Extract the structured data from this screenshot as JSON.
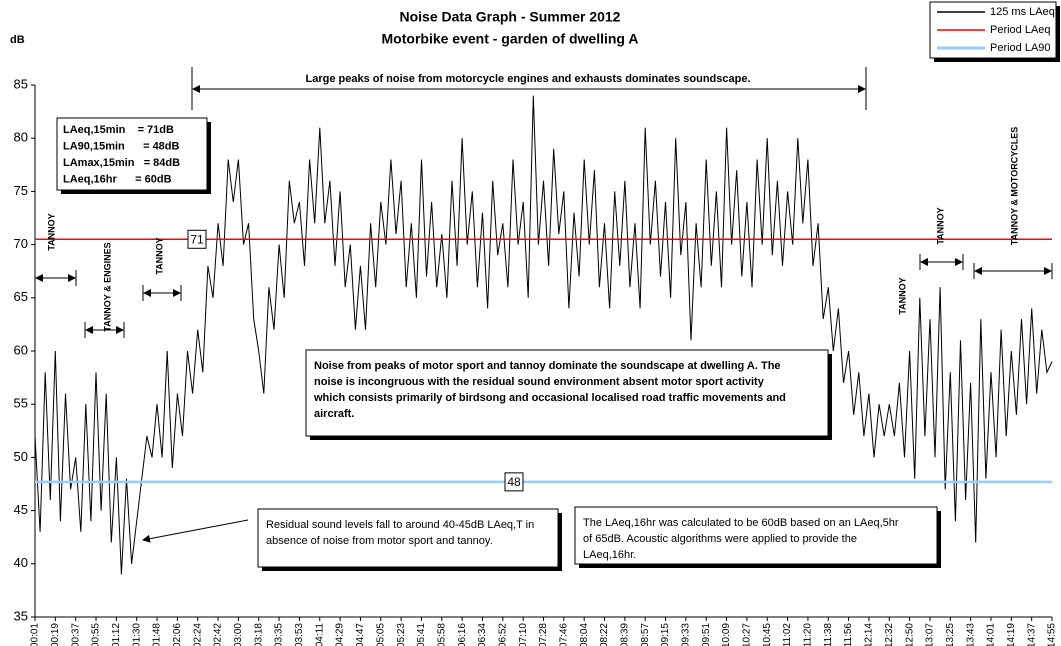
{
  "chart_data": {
    "type": "line",
    "title": "Noise Data Graph - Summer 2012",
    "subtitle": "Motorbike event - garden of dwelling A",
    "y_label": "dB",
    "ylim": [
      35,
      85
    ],
    "yticks": [
      35,
      40,
      45,
      50,
      55,
      60,
      65,
      70,
      75,
      80,
      85
    ],
    "categories": [
      "17:00:01",
      null,
      null,
      null,
      "17:00:19",
      null,
      null,
      null,
      "17:00:37",
      null,
      null,
      null,
      "17:00:55",
      null,
      null,
      null,
      "17:01:12",
      null,
      null,
      null,
      "17:01:30",
      null,
      null,
      null,
      "17:01:48",
      null,
      null,
      null,
      "17:02:06",
      null,
      null,
      null,
      "17:02:24",
      null,
      null,
      null,
      "17:02:42",
      null,
      null,
      null,
      "17:03:00",
      null,
      null,
      null,
      "17:03:18",
      null,
      null,
      null,
      "17:03:35",
      null,
      null,
      null,
      "17:03:53",
      null,
      null,
      null,
      "17:04:11",
      null,
      null,
      null,
      "17:04:29",
      null,
      null,
      null,
      "17:04:47",
      null,
      null,
      null,
      "17:05:05",
      null,
      null,
      null,
      "17:05:23",
      null,
      null,
      null,
      "17:05:41",
      null,
      null,
      null,
      "17:05:58",
      null,
      null,
      null,
      "17:06:16",
      null,
      null,
      null,
      "17:06:34",
      null,
      null,
      null,
      "17:06:52",
      null,
      null,
      null,
      "17:07:10",
      null,
      null,
      null,
      "17:07:28",
      null,
      null,
      null,
      "17:07:46",
      null,
      null,
      null,
      "17:08:04",
      null,
      null,
      null,
      "17:08:22",
      null,
      null,
      null,
      "17:08:39",
      null,
      null,
      null,
      "17:08:57",
      null,
      null,
      null,
      "17:09:15",
      null,
      null,
      null,
      "17:09:33",
      null,
      null,
      null,
      "17:09:51",
      null,
      null,
      null,
      "17:10:09",
      null,
      null,
      null,
      "17:10:27",
      null,
      null,
      null,
      "17:10:45",
      null,
      null,
      null,
      "17:11:02",
      null,
      null,
      null,
      "17:11:20",
      null,
      null,
      null,
      "17:11:38",
      null,
      null,
      null,
      "17:11:56",
      null,
      null,
      null,
      "17:12:14",
      null,
      null,
      null,
      "17:12:32",
      null,
      null,
      null,
      "17:12:50",
      null,
      null,
      null,
      "17:13:07",
      null,
      null,
      null,
      "17:13:25",
      null,
      null,
      null,
      "17:13:43",
      null,
      null,
      null,
      "17:14:01",
      null,
      null,
      null,
      "17:14:19",
      null,
      null,
      null,
      "17:14:37",
      null,
      null,
      null,
      "17:14:55"
    ],
    "series": [
      {
        "name": "125 ms LAeq",
        "color": "#000000",
        "values": [
          52,
          43,
          58,
          46,
          60,
          44,
          56,
          47,
          50,
          43,
          55,
          44,
          58,
          45,
          56,
          42,
          50,
          39,
          48,
          40,
          44,
          48,
          52,
          50,
          55,
          50,
          60,
          49,
          56,
          52,
          60,
          56,
          62,
          58,
          68,
          65,
          72,
          68,
          78,
          74,
          78,
          70,
          72,
          63,
          60,
          56,
          66,
          62,
          70,
          65,
          76,
          72,
          74,
          68,
          78,
          72,
          81,
          72,
          76,
          68,
          75,
          66,
          70,
          62,
          68,
          62,
          72,
          66,
          74,
          70,
          78,
          71,
          76,
          66,
          72,
          65,
          78,
          67,
          74,
          66,
          71,
          65,
          76,
          68,
          80,
          70,
          75,
          66,
          73,
          64,
          76,
          69,
          72,
          66,
          78,
          70,
          74,
          65,
          84,
          70,
          76,
          68,
          79,
          71,
          75,
          64,
          73,
          67,
          78,
          70,
          77,
          66,
          72,
          64,
          75,
          68,
          76,
          66,
          72,
          64,
          81,
          70,
          76,
          67,
          74,
          65,
          80,
          69,
          74,
          61,
          72,
          66,
          78,
          68,
          75,
          66,
          81,
          70,
          77,
          67,
          74,
          66,
          78,
          70,
          80,
          69,
          76,
          68,
          75,
          70,
          80,
          72,
          78,
          68,
          72,
          63,
          66,
          60,
          64,
          57,
          60,
          54,
          58,
          52,
          56,
          50,
          55,
          52,
          55,
          52,
          57,
          50,
          60,
          48,
          65,
          52,
          63,
          50,
          66,
          47,
          58,
          44,
          61,
          46,
          57,
          42,
          63,
          48,
          58,
          50,
          62,
          52,
          60,
          54,
          63,
          55,
          64,
          56,
          62,
          58,
          59
        ]
      },
      {
        "name": "Period LAeq",
        "color": "#ff0000",
        "value": 70.5,
        "label": "71"
      },
      {
        "name": "Period LA90",
        "color": "#99ccff",
        "value": 47.7,
        "label": "48"
      }
    ],
    "stats": [
      "LAeq,15min    = 71dB",
      "LA90,15min      = 48dB",
      "LAmax,15min   = 84dB",
      "LAeq,16hr      = 60dB"
    ],
    "annotations": [
      "Large peaks of noise from motorcycle engines and exhausts dominates soundscape.",
      "TANNOY",
      "TANNOY & ENGINES",
      "TANNOY",
      "TANNOY",
      "TANNOY",
      "TANNOY & MOTORCYCLES"
    ],
    "notes": [
      [
        "Noise from peaks of motor sport and tannoy dominate the soundscape at dwelling A. The",
        "noise is incongruous with the residual sound environment absent motor sport activity",
        "which consists primarily of birdsong and occasional localised road traffic movements and",
        "aircraft."
      ],
      [
        "Residual sound levels fall to around 40-45dB LAeq,T in",
        "absence of noise from motor sport and tannoy."
      ],
      [
        "The LAeq,16hr was calculated to be 60dB based on an LAeq,5hr",
        "of 65dB. Acoustic algorithms were applied to provide the",
        "LAeq,16hr."
      ]
    ]
  }
}
